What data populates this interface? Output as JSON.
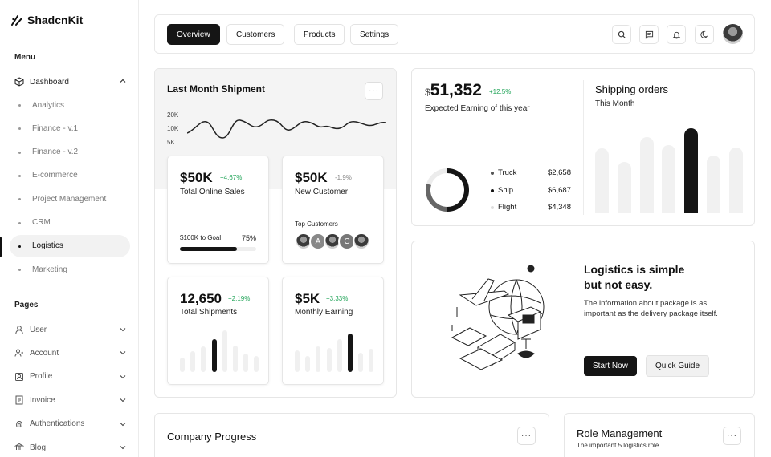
{
  "brand": {
    "name": "ShadcnKit"
  },
  "sidebar": {
    "menu_label": "Menu",
    "dashboard_label": "Dashboard",
    "dashboard_items": [
      "Analytics",
      "Finance - v.1",
      "Finance - v.2",
      "E-commerce",
      "Project Management",
      "CRM",
      "Logistics",
      "Marketing"
    ],
    "active_item": "Logistics",
    "pages_label": "Pages",
    "pages": [
      {
        "label": "User",
        "icon": "user-icon"
      },
      {
        "label": "Account",
        "icon": "account-icon"
      },
      {
        "label": "Profile",
        "icon": "profile-icon"
      },
      {
        "label": "Invoice",
        "icon": "invoice-icon"
      },
      {
        "label": "Authentications",
        "icon": "fingerprint-icon"
      },
      {
        "label": "Blog",
        "icon": "blog-icon"
      }
    ]
  },
  "topbar": {
    "tabs": [
      "Overview",
      "Customers",
      "Products",
      "Settings"
    ],
    "active_tab": "Overview"
  },
  "shipment": {
    "title": "Last Month Shipment",
    "y_ticks": [
      "20K",
      "10K",
      "5K"
    ]
  },
  "online_sales": {
    "value": "$50K",
    "change": "+4.67%",
    "label": "Total Online Sales",
    "goal_label": "$100K to Goal",
    "goal_pct": "75%",
    "goal_fraction": 0.75
  },
  "new_customer": {
    "value": "$50K",
    "change": "-1.9%",
    "label": "New Customer",
    "top_label": "Top Customers"
  },
  "total_shipments": {
    "value": "12,650",
    "change": "+2.19%",
    "label": "Total Shipments",
    "bars": [
      0.35,
      0.5,
      0.62,
      0.78,
      1.0,
      0.64,
      0.44,
      0.38
    ],
    "highlight": 3
  },
  "monthly_earning": {
    "value": "$5K",
    "change": "+3.33%",
    "label": "Monthly Earning",
    "bars": [
      0.52,
      0.38,
      0.62,
      0.58,
      0.78,
      0.92,
      0.46,
      0.55
    ],
    "highlight": 5
  },
  "earning": {
    "currency": "$",
    "value": "51,352",
    "change": "+12.5%",
    "label": "Expected Earning of this year",
    "legend": [
      {
        "name": "Truck",
        "amount": "$2,658",
        "color": "#555555"
      },
      {
        "name": "Ship",
        "amount": "$6,687",
        "color": "#111111"
      },
      {
        "name": "Flight",
        "amount": "$4,348",
        "color": "#dddddd"
      }
    ]
  },
  "shipping_orders": {
    "title": "Shipping orders",
    "subtitle": "This Month",
    "bars": [
      0.76,
      0.6,
      0.9,
      0.8,
      1.0,
      0.68,
      0.77
    ],
    "highlight": 4
  },
  "promo": {
    "title_line1": "Logistics is simple",
    "title_line2": "but not easy.",
    "desc_line1": "The information about package is as",
    "desc_line2": "important as the delivery package itself.",
    "primary_label": "Start Now",
    "secondary_label": "Quick Guide"
  },
  "company_progress": {
    "title": "Company Progress"
  },
  "role_management": {
    "title": "Role Management",
    "subtitle": "The important 5 logistics role"
  },
  "colors": {
    "accent": "#151515",
    "positive": "#23a55a",
    "muted_bar": "#f0f0f0"
  }
}
